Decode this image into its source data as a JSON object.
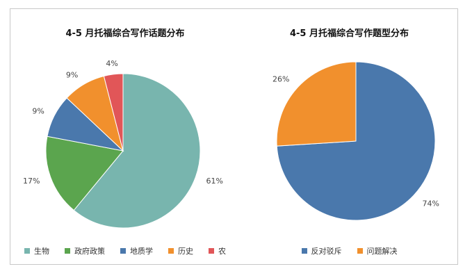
{
  "chart_data": [
    {
      "type": "pie",
      "title": "4-5 月托福综合写作话题分布",
      "slices": [
        {
          "label": "生物",
          "value": 61,
          "display": "61%",
          "color": "#78b5ae"
        },
        {
          "label": "政府政策",
          "value": 17,
          "display": "17%",
          "color": "#5ba54e"
        },
        {
          "label": "地质学",
          "value": 9,
          "display": "9%",
          "color": "#4a78ac"
        },
        {
          "label": "历史",
          "value": 9,
          "display": "9%",
          "color": "#f1902d"
        },
        {
          "label": "农",
          "value": 4,
          "display": "4%",
          "color": "#e15658"
        }
      ],
      "legend": "bottom"
    },
    {
      "type": "pie",
      "title": "4-5 月托福综合写作题型分布",
      "slices": [
        {
          "label": "反对驳斥",
          "value": 74,
          "display": "74%",
          "color": "#4a78ac"
        },
        {
          "label": "问题解决",
          "value": 26,
          "display": "26%",
          "color": "#f1902d"
        }
      ],
      "legend": "bottom"
    }
  ]
}
